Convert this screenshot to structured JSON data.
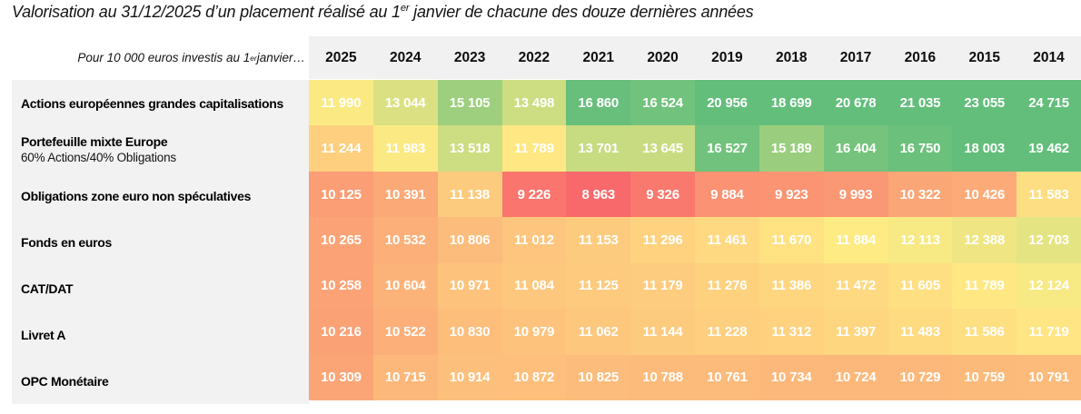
{
  "title": {
    "pre": "Valorisation au 31/12/2025 d’un placement réalisé au 1",
    "sup": "er",
    "post": " janvier de chacune des douze dernières années"
  },
  "corner_label": {
    "pre": "Pour 10 000 euros investis au 1",
    "sup": "er",
    "post": "janvier…"
  },
  "style": {
    "header_bg": "#F1F1F2",
    "label_panel_bg": "#F2F2F2",
    "cell_text_color": "#FFFFFF"
  },
  "chart_data": {
    "type": "heatmap",
    "title": "Valorisation au 31/12/2025 d’un placement réalisé au 1er janvier de chacune des douze dernières années",
    "corner_label": "Pour 10 000 euros investis au 1er janvier…",
    "columns": [
      "2025",
      "2024",
      "2023",
      "2022",
      "2021",
      "2020",
      "2019",
      "2018",
      "2017",
      "2016",
      "2015",
      "2014"
    ],
    "rows": [
      {
        "label": "Actions européennes grandes capitalisations",
        "values": [
          11990,
          13044,
          15105,
          13498,
          16860,
          16524,
          20956,
          18699,
          20678,
          21035,
          23055,
          24715
        ]
      },
      {
        "label": "Portefeuille mixte Europe",
        "sublabel": "60% Actions/40% Obligations",
        "values": [
          11244,
          11983,
          13518,
          11789,
          13701,
          13645,
          16527,
          15189,
          16404,
          16750,
          18003,
          19462
        ]
      },
      {
        "label": "Obligations zone euro non spéculatives",
        "values": [
          10125,
          10391,
          11138,
          9226,
          8963,
          9326,
          9884,
          9923,
          9993,
          10322,
          10426,
          11583
        ]
      },
      {
        "label": "Fonds en euros",
        "values": [
          10265,
          10532,
          10806,
          11012,
          11153,
          11296,
          11461,
          11670,
          11884,
          12113,
          12388,
          12703
        ]
      },
      {
        "label": "CAT/DAT",
        "values": [
          10258,
          10604,
          10971,
          11084,
          11125,
          11179,
          11276,
          11386,
          11472,
          11605,
          11789,
          12124
        ]
      },
      {
        "label": "Livret A",
        "values": [
          10216,
          10522,
          10830,
          10979,
          11062,
          11144,
          11228,
          11312,
          11397,
          11483,
          11586,
          11719
        ]
      },
      {
        "label": "OPC Monétaire",
        "values": [
          10309,
          10715,
          10914,
          10872,
          10825,
          10788,
          10761,
          10734,
          10724,
          10729,
          10759,
          10791
        ]
      }
    ],
    "color_scale": {
      "min_value": 8963,
      "min_color": "#F8696B",
      "mid_value": 11863,
      "mid_color": "#FFEB84",
      "max_value": 17000,
      "max_color": "#63BE7B"
    }
  }
}
